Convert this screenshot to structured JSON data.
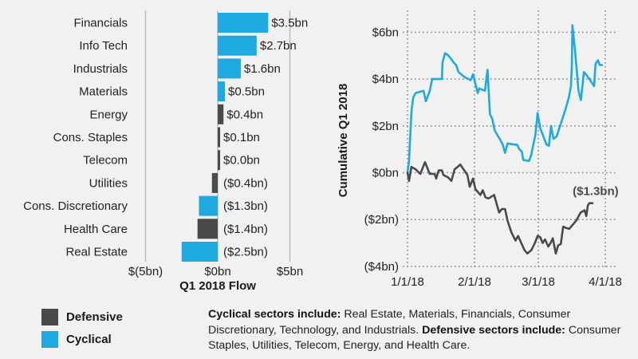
{
  "colors": {
    "defensive": "#4a4a4a",
    "cyclical": "#1eaae1",
    "grid": "#bdbdbd",
    "dotted_grid": "#8a8a8a"
  },
  "chart_data": [
    {
      "type": "bar",
      "orientation": "horizontal",
      "xlabel": "Q1 2018 Flow",
      "xlim": [
        -5,
        5
      ],
      "xticks": [
        {
          "value": -5,
          "label": "$(5bn)"
        },
        {
          "value": 0,
          "label": "$0bn"
        },
        {
          "value": 5,
          "label": "$5bn"
        }
      ],
      "grid": true,
      "categories": [
        "Financials",
        "Info Tech",
        "Industrials",
        "Materials",
        "Energy",
        "Cons. Staples",
        "Telecom",
        "Utilities",
        "Cons. Discretionary",
        "Health Care",
        "Real Estate"
      ],
      "values": [
        3.5,
        2.7,
        1.6,
        0.5,
        0.4,
        0.1,
        0.0,
        -0.4,
        -1.3,
        -1.4,
        -2.5
      ],
      "groups": [
        "Cyclical",
        "Cyclical",
        "Cyclical",
        "Cyclical",
        "Defensive",
        "Defensive",
        "Defensive",
        "Defensive",
        "Cyclical",
        "Defensive",
        "Cyclical"
      ],
      "value_labels": [
        "$3.5bn",
        "$2.7bn",
        "$1.6bn",
        "$0.5bn",
        "$0.4bn",
        "$0.1bn",
        "$0.0bn",
        "($0.4bn)",
        "($1.3bn)",
        "($1.4bn)",
        "($2.5bn)"
      ],
      "legend": {
        "placement": "bottom-left",
        "entries": [
          {
            "name": "Defensive",
            "color": "#4a4a4a"
          },
          {
            "name": "Cyclical",
            "color": "#1eaae1"
          }
        ]
      }
    },
    {
      "type": "line",
      "ylabel": "Cumulative Q1 2018",
      "ylim": [
        -4,
        6
      ],
      "yticks": [
        {
          "value": 6,
          "label": "$6bn"
        },
        {
          "value": 4,
          "label": "$4bn"
        },
        {
          "value": 2,
          "label": "$2bn"
        },
        {
          "value": 0,
          "label": "$0bn"
        },
        {
          "value": -2,
          "label": "($2bn)"
        },
        {
          "value": -4,
          "label": "($4bn)"
        }
      ],
      "xlim_days": [
        0,
        90
      ],
      "xticks": [
        {
          "day": 0,
          "label": "1/1/18"
        },
        {
          "day": 31,
          "label": "2/1/18"
        },
        {
          "day": 59,
          "label": "3/1/18"
        },
        {
          "day": 90,
          "label": "4/1/18"
        }
      ],
      "grid": "dotted",
      "annotation": {
        "text": "($1.3bn)",
        "series": "Defensive",
        "day": 87,
        "value": -1.3
      },
      "series": [
        {
          "name": "Cyclical",
          "color": "#1eaae1",
          "days": [
            0,
            0.7,
            1.8,
            2.6,
            3.7,
            5.5,
            7.4,
            8.5,
            10.3,
            11.4,
            15.9,
            16.2,
            17.3,
            18.4,
            19.9,
            21.4,
            22.5,
            23.6,
            26.2,
            29.2,
            30.3,
            31.4,
            32.4,
            33.1,
            35.6,
            36.7,
            37.8,
            38.8,
            39.9,
            42.3,
            43.4,
            44.4,
            45.5,
            48.6,
            49.7,
            50.7,
            51.8,
            52.4,
            54.9,
            55.9,
            56.6,
            57.7,
            58.7,
            59.9,
            62.8,
            63.9,
            64.9,
            66.0,
            67.5,
            71.2,
            73.1,
            74.1,
            74.5,
            74.8,
            75.9,
            77.6,
            78.7,
            80.1,
            81.5,
            83.7,
            84.8,
            85.5,
            86.6,
            87.4,
            88.5
          ],
          "values": [
            0.0,
            0.5,
            2.6,
            3.2,
            3.4,
            3.45,
            3.5,
            3.05,
            3.5,
            4.0,
            4.0,
            4.7,
            5.1,
            5.05,
            4.9,
            4.7,
            4.6,
            4.3,
            4.1,
            3.95,
            4.2,
            3.8,
            3.4,
            3.6,
            3.5,
            4.4,
            2.5,
            2.3,
            1.8,
            1.4,
            1.2,
            0.85,
            1.25,
            1.2,
            1.2,
            1.0,
            0.9,
            0.55,
            0.5,
            0.75,
            1.1,
            1.6,
            2.55,
            1.9,
            1.2,
            1.15,
            2.0,
            1.45,
            1.55,
            2.6,
            3.2,
            3.7,
            4.5,
            6.3,
            5.3,
            3.5,
            3.1,
            4.3,
            4.15,
            3.85,
            3.7,
            4.65,
            4.8,
            4.6,
            4.6
          ]
        },
        {
          "name": "Defensive",
          "color": "#4a4a4a",
          "days": [
            0,
            0.7,
            1.8,
            3.7,
            5.9,
            8.1,
            9.2,
            10.3,
            12.5,
            13.3,
            14.4,
            15.9,
            16.6,
            18.8,
            20.3,
            21.8,
            23.2,
            24.4,
            26.6,
            27.7,
            28.8,
            30.3,
            31.4,
            33.6,
            34.6,
            35.8,
            37.1,
            38.8,
            39.6,
            41.8,
            43.0,
            44.4,
            45.5,
            47.2,
            49.0,
            50.1,
            52.9,
            54.2,
            56.0,
            57.5,
            58.7,
            59.9,
            61.0,
            62.1,
            63.6,
            64.7,
            65.7,
            67.1,
            68.2,
            69.4,
            70.5,
            71.6,
            73.3,
            76.5,
            78.6,
            80.4,
            81.2,
            81.9,
            82.6,
            84.1
          ],
          "values": [
            0.0,
            -0.35,
            0.25,
            0.15,
            -0.05,
            0.45,
            0.2,
            -0.05,
            -0.05,
            -0.25,
            0.1,
            0.1,
            -0.1,
            -0.2,
            -0.35,
            0.15,
            0.25,
            0.35,
            0.05,
            -0.1,
            -0.6,
            -0.25,
            -0.7,
            -0.95,
            -0.75,
            -1.05,
            -1.1,
            -1.0,
            -0.95,
            -1.7,
            -1.55,
            -1.55,
            -2.05,
            -2.55,
            -2.9,
            -2.7,
            -3.3,
            -3.45,
            -3.3,
            -3.0,
            -2.7,
            -2.75,
            -3.0,
            -2.85,
            -3.15,
            -3.0,
            -2.8,
            -3.45,
            -3.1,
            -3.05,
            -2.3,
            -2.35,
            -2.4,
            -2.05,
            -1.7,
            -1.6,
            -1.85,
            -1.4,
            -1.3,
            -1.3
          ]
        }
      ]
    }
  ],
  "legend": {
    "items": [
      {
        "label": "Defensive",
        "color": "#4a4a4a"
      },
      {
        "label": "Cyclical",
        "color": "#1eaae1"
      }
    ]
  },
  "note": {
    "cyclical_heading": "Cyclical sectors include:",
    "cyclical_text": " Real Estate, Materials, Financials, Consumer Discretionary, Technology, and Industrials. ",
    "defensive_heading": "Defensive sectors include:",
    "defensive_text": " Consumer Staples, Utilities, Telecom, Energy, and Health Care."
  }
}
